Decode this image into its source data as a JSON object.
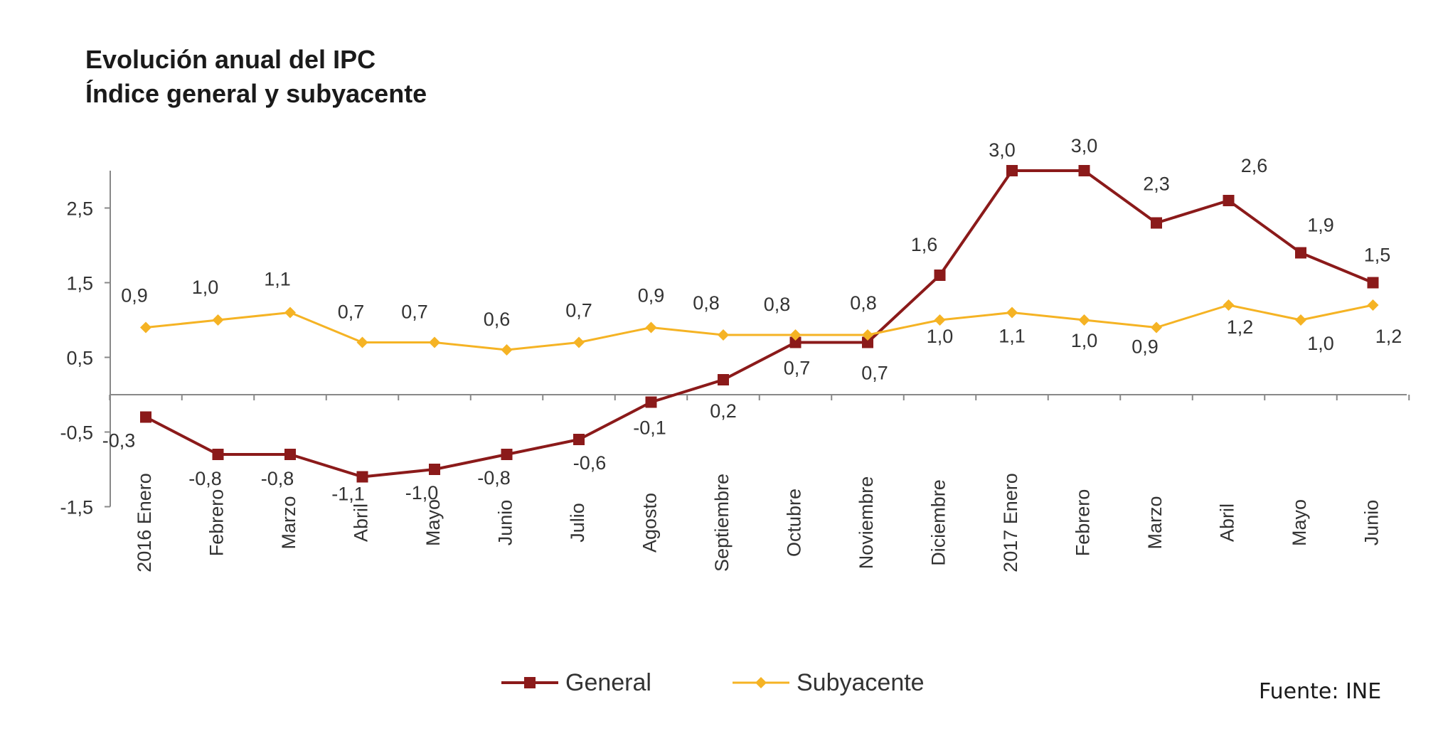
{
  "chart_data": {
    "type": "line",
    "title": "Evolución anual del IPC",
    "subtitle": "Índice general y subyacente",
    "categories": [
      "2016 Enero",
      "Febrero",
      "Marzo",
      "Abril",
      "Mayo",
      "Junio",
      "Julio",
      "Agosto",
      "Septiembre",
      "Octubre",
      "Noviembre",
      "Diciembre",
      "2017 Enero",
      "Febrero",
      "Marzo",
      "Abril",
      "Mayo",
      "Junio"
    ],
    "series": [
      {
        "name": "General",
        "color": "#8b1a1a",
        "marker": "square",
        "values": [
          -0.3,
          -0.8,
          -0.8,
          -1.1,
          -1.0,
          -0.8,
          -0.6,
          -0.1,
          0.2,
          0.7,
          0.7,
          1.6,
          3.0,
          3.0,
          2.3,
          2.6,
          1.9,
          1.5
        ],
        "labels": [
          "-0,3",
          "-0,8",
          "-0,8",
          "-1,1",
          "-1,0",
          "-0,8",
          "-0,6",
          "-0,1",
          "0,2",
          "0,7",
          "0,7",
          "1,6",
          "3,0",
          "3,0",
          "2,3",
          "2,6",
          "1,9",
          "1,5"
        ]
      },
      {
        "name": "Subyacente",
        "color": "#f5b324",
        "marker": "diamond",
        "values": [
          0.9,
          1.0,
          1.1,
          0.7,
          0.7,
          0.6,
          0.7,
          0.9,
          0.8,
          0.8,
          0.8,
          1.0,
          1.1,
          1.0,
          0.9,
          1.2,
          1.0,
          1.2
        ],
        "labels": [
          "0,9",
          "1,0",
          "1,1",
          "0,7",
          "0,7",
          "0,6",
          "0,7",
          "0,9",
          "0,8",
          "0,8",
          "0,8",
          "1,0",
          "1,1",
          "1,0",
          "0,9",
          "1,2",
          "1,0",
          "1,2"
        ]
      }
    ],
    "yticks": [
      2.5,
      1.5,
      0.5,
      -0.5,
      -1.5
    ],
    "ytick_labels": [
      "2,5",
      "1,5",
      "0,5",
      "-0,5",
      "-1,5"
    ],
    "ylim": [
      -1.5,
      3.0
    ],
    "grid": false,
    "legend_position": "bottom"
  },
  "source": "Fuente: INE"
}
